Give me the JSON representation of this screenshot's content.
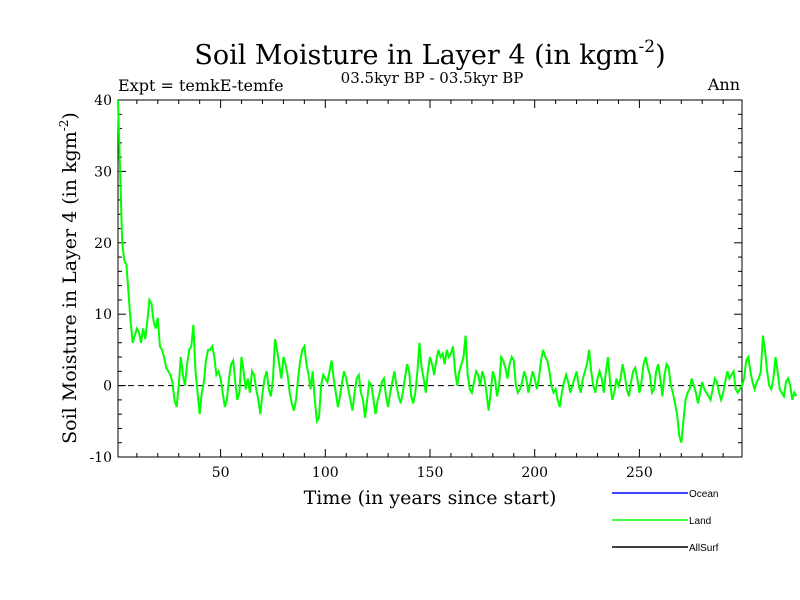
{
  "chart_data": {
    "type": "line",
    "title": "Soil Moisture in Layer 4 (in kgm",
    "title_exp": "-2",
    "title_close": ")",
    "subtitle": "03.5kyr BP - 03.5kyr BP",
    "expt_label": "Expt = temkE-temfe",
    "season_label": "Ann",
    "xlabel": "Time (in years since start)",
    "ylabel": "Soil Moisture in Layer 4 (in kgm",
    "ylabel_exp": "-2",
    "ylabel_close": ")",
    "xlim": [
      1,
      299
    ],
    "ylim": [
      -10,
      40
    ],
    "xticks_major": [
      "50",
      "100",
      "150",
      "200",
      "250"
    ],
    "yticks_major": [
      "-10",
      "0",
      "10",
      "20",
      "30",
      "40"
    ],
    "zero_line": true,
    "legend": [
      {
        "name": "Ocean",
        "color": "#0000ff"
      },
      {
        "name": "Land",
        "color": "#00ff00"
      },
      {
        "name": "AllSurf",
        "color": "#000000"
      }
    ],
    "series": [
      {
        "name": "Land",
        "color": "#00ff00",
        "x_start": 1,
        "x_step": 1,
        "values": [
          40,
          30,
          20,
          17.5,
          17,
          13,
          9,
          6,
          7,
          8,
          7.5,
          6,
          8,
          6.5,
          9,
          12,
          11.5,
          9,
          8,
          9.5,
          5.5,
          5,
          4,
          2.5,
          2,
          1.5,
          0.5,
          -2,
          -3,
          0,
          4,
          1.5,
          0,
          3,
          5,
          5.5,
          8.5,
          2,
          -1,
          -4,
          -1,
          0.5,
          3.5,
          5,
          5,
          5.5,
          4,
          1.5,
          2,
          1,
          -1,
          -3,
          -2,
          1,
          3,
          3.5,
          0.5,
          -2,
          -1,
          4,
          2,
          -0.5,
          1,
          -1,
          2,
          1.5,
          -0.5,
          -2,
          -4,
          -1,
          1,
          2,
          -0.5,
          -1.5,
          1,
          6.5,
          5,
          3,
          1,
          4,
          3,
          1.5,
          -1,
          -2.5,
          -3.5,
          -2,
          1,
          3.5,
          5,
          5.5,
          3,
          1.5,
          -0.5,
          2,
          -2,
          -5,
          -4.5,
          0,
          1.5,
          1,
          0.5,
          2,
          3.5,
          1,
          -1,
          -3,
          -1.5,
          0.5,
          2,
          1,
          -0.5,
          -2,
          -3.5,
          -1,
          1,
          1.5,
          -1,
          -2,
          -4.5,
          -2,
          0.5,
          0,
          -2,
          -4,
          -2,
          -1,
          0.5,
          1,
          -1.5,
          -3,
          -1,
          0.5,
          2,
          0,
          -1.5,
          -2.5,
          -1,
          1,
          3,
          2,
          -1.5,
          -2.5,
          -1,
          2,
          6,
          2.5,
          1,
          -1,
          2,
          4,
          3,
          1.5,
          3.5,
          5,
          4,
          4.5,
          3,
          5,
          4,
          4.5,
          5.5,
          2,
          0,
          2,
          3,
          4,
          7,
          1.5,
          -0.5,
          -1,
          0.5,
          2,
          1.5,
          0,
          2,
          1,
          -1,
          -3.5,
          -1,
          2,
          1,
          -1.5,
          0,
          4,
          3.5,
          2.5,
          1,
          3,
          4,
          3.5,
          0,
          -1,
          -0.5,
          0.5,
          2,
          1,
          -1,
          0.5,
          2,
          1,
          -0.5,
          1,
          3.5,
          5,
          4,
          3.5,
          2,
          0,
          -1,
          -0.5,
          -2,
          -3,
          -1,
          0.5,
          1.5,
          0.5,
          -1,
          0,
          1,
          2,
          0,
          -1,
          1,
          2,
          3,
          5,
          2,
          0,
          -1,
          1,
          2,
          1,
          -1,
          2,
          4,
          0.5,
          -2,
          -1,
          1,
          0,
          1,
          3,
          1.5,
          -0.5,
          -1.5,
          0.5,
          2,
          2.5,
          1,
          -1,
          0.5,
          3,
          4,
          2.5,
          1.5,
          -1,
          -0.5,
          2,
          3,
          1,
          -1.5,
          1.5,
          3,
          2.5,
          0,
          -1,
          -2.5,
          -4,
          -7,
          -8,
          -5,
          -2,
          -1,
          -0.5,
          1,
          0,
          -1,
          -2.5,
          -1,
          0.5,
          -0.5,
          -1,
          -1.5,
          -2,
          -0.5,
          1,
          0.5,
          -1,
          -2,
          -1,
          0.5,
          2,
          1,
          1.5,
          2,
          -0.5,
          -1,
          -0.5,
          0,
          1,
          3.5,
          4,
          2,
          0.5,
          -0.5,
          0.5,
          1,
          2,
          7,
          5,
          2,
          0,
          -0.5,
          1,
          4,
          2,
          -0.5,
          -1,
          -1.5,
          0.5,
          1,
          0,
          -2,
          -1,
          -1.5
        ]
      }
    ]
  }
}
